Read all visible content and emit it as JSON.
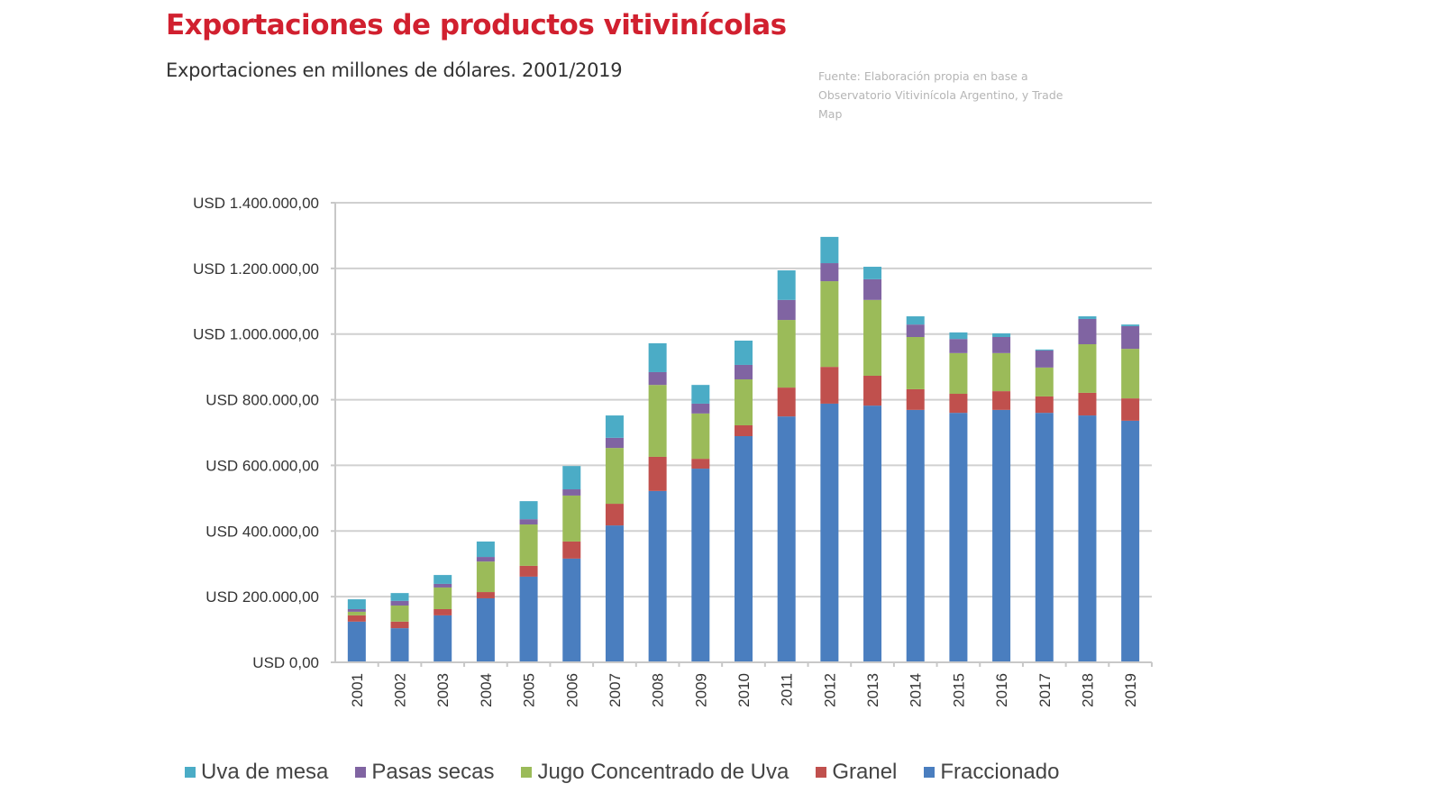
{
  "header": {
    "title": "Exportaciones de productos vitivinícolas",
    "subtitle": "Exportaciones en millones de dólares. 2001/2019",
    "source": "Fuente: Elaboración propia en base a Observatorio Vitivinícola Argentino, y Trade Map"
  },
  "chart_data": {
    "type": "bar",
    "stacked": true,
    "title": "Exportaciones de productos vitivinícolas",
    "subtitle": "Exportaciones en millones de dólares. 2001/2019",
    "xlabel": "",
    "ylabel": "",
    "ylim": [
      0,
      1400000
    ],
    "yticks": [
      0,
      200000,
      400000,
      600000,
      800000,
      1000000,
      1200000,
      1400000
    ],
    "ytick_labels": [
      "USD 0,00",
      "USD 200.000,00",
      "USD 400.000,00",
      "USD 600.000,00",
      "USD 800.000,00",
      "USD 1.000.000,00",
      "USD 1.200.000,00",
      "USD 1.400.000,00"
    ],
    "grid": true,
    "legend_position": "bottom",
    "categories": [
      "2001",
      "2002",
      "2003",
      "2004",
      "2005",
      "2006",
      "2007",
      "2008",
      "2009",
      "2010",
      "2011",
      "2012",
      "2013",
      "2014",
      "2015",
      "2016",
      "2017",
      "2018",
      "2019"
    ],
    "series": [
      {
        "name": "Fraccionado",
        "color": "#4a7ebf",
        "values": [
          124000,
          104000,
          143000,
          195000,
          261000,
          316000,
          417000,
          522000,
          590000,
          689000,
          749000,
          788000,
          782000,
          769000,
          760000,
          769000,
          760000,
          752000,
          736000
        ]
      },
      {
        "name": "Granel",
        "color": "#c0504d",
        "values": [
          19000,
          20000,
          19000,
          19000,
          33000,
          52000,
          66000,
          104000,
          30000,
          33000,
          88000,
          112000,
          91000,
          63000,
          58000,
          57000,
          50000,
          69000,
          68000
        ]
      },
      {
        "name": "Jugo Concentrado de Uva",
        "color": "#9bbb59",
        "values": [
          11000,
          49000,
          66000,
          93000,
          126000,
          140000,
          170000,
          219000,
          138000,
          140000,
          206000,
          261000,
          231000,
          159000,
          124000,
          116000,
          88000,
          148000,
          151000
        ]
      },
      {
        "name": "Pasas secas",
        "color": "#8064a2",
        "values": [
          8000,
          14000,
          11000,
          14000,
          16000,
          19000,
          31000,
          39000,
          30000,
          44000,
          61000,
          55000,
          63000,
          38000,
          43000,
          49000,
          52000,
          77000,
          69000
        ]
      },
      {
        "name": "Uva de mesa",
        "color": "#4bacc6",
        "values": [
          30000,
          24000,
          27000,
          47000,
          55000,
          71000,
          68000,
          88000,
          57000,
          74000,
          90000,
          80000,
          38000,
          25000,
          20000,
          11000,
          3000,
          8000,
          5000
        ]
      }
    ],
    "legend_order": [
      "Uva de mesa",
      "Pasas secas",
      "Jugo Concentrado de Uva",
      "Granel",
      "Fraccionado"
    ]
  }
}
